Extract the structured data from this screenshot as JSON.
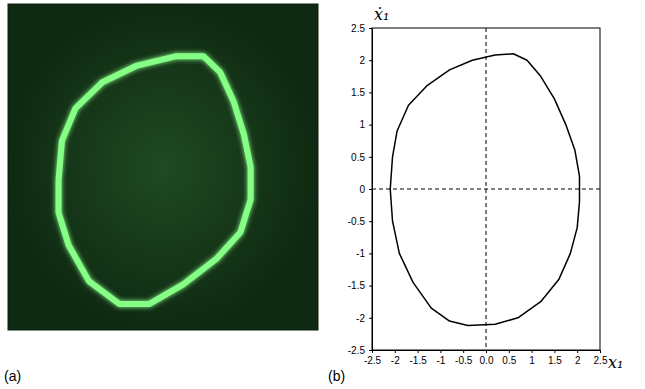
{
  "chart_data": [
    {
      "type": "line",
      "label": "(a)",
      "tick_labels": false,
      "color": "#86ff86",
      "xlim": [
        -2.4,
        2.2
      ],
      "ylim": [
        -2.6,
        2.4
      ],
      "x": [
        -1.65,
        -1.6,
        -1.4,
        -1.0,
        -0.5,
        0.1,
        0.5,
        0.75,
        0.95,
        1.1,
        1.2,
        1.2,
        1.05,
        0.7,
        0.2,
        -0.3,
        -0.75,
        -1.2,
        -1.5,
        -1.65,
        -1.65
      ],
      "values": [
        -0.3,
        0.3,
        0.8,
        1.2,
        1.45,
        1.6,
        1.6,
        1.35,
        0.9,
        0.4,
        -0.1,
        -0.6,
        -1.1,
        -1.5,
        -1.9,
        -2.2,
        -2.2,
        -1.85,
        -1.3,
        -0.8,
        -0.3
      ]
    },
    {
      "type": "line",
      "label": "(b)",
      "x_label": "x₁",
      "y_label": "ẋ₁",
      "color": "#000000",
      "xlim": [
        -2.5,
        2.5
      ],
      "ylim": [
        -2.5,
        2.5
      ],
      "xticks": [
        -2.5,
        -2,
        -1.5,
        -1,
        -0.5,
        {
          "value": 0,
          "label": "0.0"
        },
        0.5,
        1,
        1.5,
        2,
        2.5
      ],
      "yticks": [
        -2.5,
        -2,
        -1.5,
        -1,
        -0.5,
        0,
        0.5,
        1,
        1.5,
        2,
        2.5
      ],
      "x": [
        -2.1,
        -2.05,
        -1.95,
        -1.7,
        -1.3,
        -0.8,
        -0.3,
        0.2,
        0.6,
        0.9,
        1.2,
        1.5,
        1.75,
        1.95,
        2.05,
        2.05,
        2.0,
        1.85,
        1.6,
        1.2,
        0.7,
        0.2,
        -0.4,
        -0.8,
        -1.2,
        -1.6,
        -1.9,
        -2.05,
        -2.1
      ],
      "values": [
        0.0,
        0.5,
        0.9,
        1.3,
        1.6,
        1.85,
        2.0,
        2.08,
        2.1,
        2.0,
        1.75,
        1.4,
        1.0,
        0.6,
        0.2,
        -0.2,
        -0.6,
        -1.0,
        -1.4,
        -1.75,
        -2.0,
        -2.1,
        -2.12,
        -2.05,
        -1.85,
        -1.45,
        -1.0,
        -0.5,
        0.0
      ]
    }
  ]
}
